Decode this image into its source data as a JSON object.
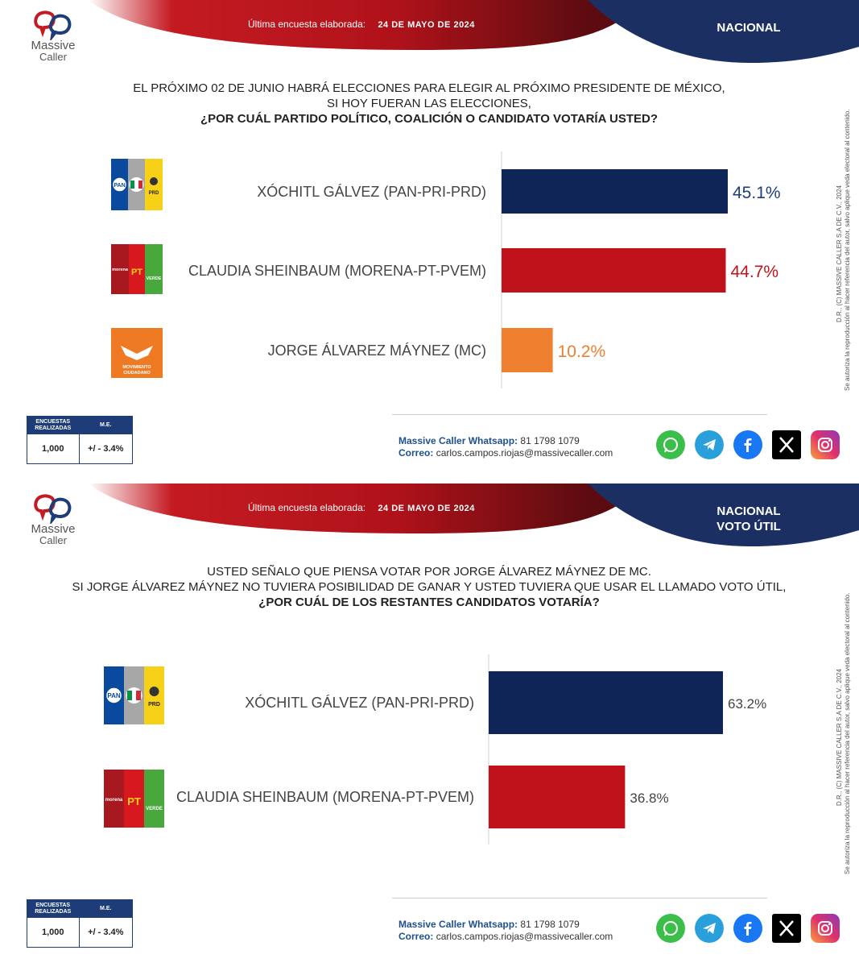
{
  "brand": {
    "name_line1": "Massive",
    "name_line2": "Caller"
  },
  "panels": [
    {
      "survey_label": "Última encuesta elaborada:",
      "survey_date": "24 DE MAYO DE 2024",
      "region_line1": "NACIONAL",
      "region_line2": "",
      "question_line1": "EL PRÓXIMO 02 DE JUNIO HABRÁ ELECCIONES PARA ELEGIR AL PRÓXIMO PRESIDENTE DE MÉXICO,",
      "question_line2": "SI HOY FUERAN LAS ELECCIONES,",
      "question_bold": "¿POR CUÁL PARTIDO POLÍTICO, COALICIÓN O CANDIDATO VOTARÍA USTED?",
      "copyright_line1": "D.R., (C) MASSIVE CALLER S.A DE C.V., 2024",
      "copyright_line2": "Se autoriza la reproducción al hacer referencia del autor, salvo aplique veda electoral al contenido.",
      "stats": {
        "h1": "ENCUESTAS REALIZADAS",
        "h2": "M.E.",
        "v1": "1,000",
        "v2": "+/ - 3.4%"
      },
      "contact": {
        "wa_label": "Massive Caller Whatsapp:",
        "wa_value": "81 1798 1079",
        "mail_label": "Correo:",
        "mail_value": "carlos.campos.riojas@massivecaller.com"
      }
    },
    {
      "survey_label": "Última encuesta elaborada:",
      "survey_date": "24 DE MAYO DE 2024",
      "region_line1": "NACIONAL",
      "region_line2": "VOTO ÚTIL",
      "question_line1": "USTED SEÑALO QUE PIENSA VOTAR POR JORGE ÁLVAREZ MÁYNEZ DE MC.",
      "question_line2": "SI JORGE ÁLVAREZ MÁYNEZ NO TUVIERA POSIBILIDAD DE GANAR Y USTED TUVIERA QUE USAR EL LLAMADO VOTO ÚTIL,",
      "question_bold": "¿POR CUÁL DE LOS RESTANTES CANDIDATOS VOTARÍA?",
      "copyright_line1": "D.R., (C) MASSIVE CALLER S.A DE C.V., 2024",
      "copyright_line2": "Se autoriza la reproducción al hacer referencia del autor, salvo aplique veda electoral al contenido.",
      "stats": {
        "h1": "ENCUESTAS REALIZADAS",
        "h2": "M.E.",
        "v1": "1,000",
        "v2": "+/ - 3.4%"
      },
      "contact": {
        "wa_label": "Massive Caller Whatsapp:",
        "wa_value": "81 1798 1079",
        "mail_label": "Correo:",
        "mail_value": "carlos.campos.riojas@massivecaller.com"
      }
    }
  ],
  "party_logos": {
    "pan": "PAN",
    "prd": "PRD",
    "morena": "morena",
    "pt": "PT",
    "verde": "VERDE",
    "mc_line1": "MOVIMIENTO",
    "mc_line2": "CIUDADANO"
  },
  "chart_data": [
    {
      "type": "bar",
      "orientation": "horizontal",
      "categories": [
        "XÓCHITL GÁLVEZ (PAN-PRI-PRD)",
        "CLAUDIA SHEINBAUM (MORENA-PT-PVEM)",
        "JORGE ÁLVAREZ MÁYNEZ (MC)"
      ],
      "values": [
        45.1,
        44.7,
        10.2
      ],
      "value_labels": [
        "45.1%",
        "44.7%",
        "10.2%"
      ],
      "colors": [
        "#0f2557",
        "#c0121a",
        "#ef8030"
      ],
      "logos": [
        "pan-pri-prd",
        "morena-pt-pvem",
        "mc"
      ],
      "xlim": [
        0,
        45.1
      ]
    },
    {
      "type": "bar",
      "orientation": "horizontal",
      "categories": [
        "XÓCHITL GÁLVEZ (PAN-PRI-PRD)",
        "CLAUDIA SHEINBAUM (MORENA-PT-PVEM)"
      ],
      "values": [
        63.2,
        36.8
      ],
      "value_labels": [
        "63.2%",
        "36.8%"
      ],
      "colors": [
        "#0f2557",
        "#c0121a"
      ],
      "logos": [
        "pan-pri-prd",
        "morena-pt-pvem"
      ],
      "xlim": [
        0,
        63.2
      ]
    }
  ],
  "colors": {
    "brand_red": "#c0121a",
    "brand_navy": "#1e3d78"
  },
  "icons": [
    "whatsapp-icon",
    "telegram-icon",
    "facebook-icon",
    "x-icon",
    "instagram-icon"
  ]
}
